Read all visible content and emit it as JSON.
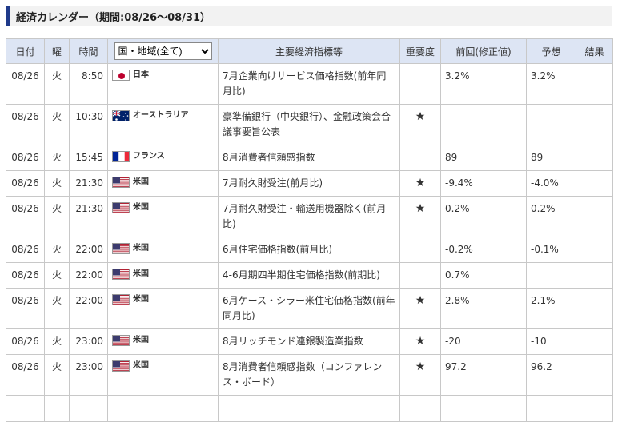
{
  "title": "経済カレンダー（期間:08/26〜08/31）",
  "headers": {
    "date": "日付",
    "weekday": "曜",
    "time": "時間",
    "region_select": "国・地域(全て)",
    "indicator": "主要経済指標等",
    "importance": "重要度",
    "previous": "前回(修正値)",
    "forecast": "予想",
    "result": "結果"
  },
  "rows": [
    {
      "date": "08/26",
      "weekday": "火",
      "time": "8:50",
      "flag": "jp-flag-icon",
      "country": "日本",
      "indicator": "7月企業向けサービス価格指数(前年同月比)",
      "importance": "",
      "previous": "3.2%",
      "forecast": "3.2%",
      "result": ""
    },
    {
      "date": "08/26",
      "weekday": "火",
      "time": "10:30",
      "flag": "au-flag-icon",
      "country": "オーストラリア",
      "indicator": "豪準備銀行（中央銀行）、金融政策会合議事要旨公表",
      "importance": "★",
      "previous": "",
      "forecast": "",
      "result": ""
    },
    {
      "date": "08/26",
      "weekday": "火",
      "time": "15:45",
      "flag": "fr-flag-icon",
      "country": "フランス",
      "indicator": "8月消費者信頼感指数",
      "importance": "",
      "previous": "89",
      "forecast": "89",
      "result": ""
    },
    {
      "date": "08/26",
      "weekday": "火",
      "time": "21:30",
      "flag": "us-flag-icon",
      "country": "米国",
      "indicator": "7月耐久財受注(前月比)",
      "importance": "★",
      "previous": "-9.4%",
      "forecast": "-4.0%",
      "result": ""
    },
    {
      "date": "08/26",
      "weekday": "火",
      "time": "21:30",
      "flag": "us-flag-icon",
      "country": "米国",
      "indicator": "7月耐久財受注・輸送用機器除く(前月比)",
      "importance": "★",
      "previous": "0.2%",
      "forecast": "0.2%",
      "result": ""
    },
    {
      "date": "08/26",
      "weekday": "火",
      "time": "22:00",
      "flag": "us-flag-icon",
      "country": "米国",
      "indicator": "6月住宅価格指数(前月比)",
      "importance": "",
      "previous": "-0.2%",
      "forecast": "-0.1%",
      "result": ""
    },
    {
      "date": "08/26",
      "weekday": "火",
      "time": "22:00",
      "flag": "us-flag-icon",
      "country": "米国",
      "indicator": "4-6月期四半期住宅価格指数(前期比)",
      "importance": "",
      "previous": "0.7%",
      "forecast": "",
      "result": ""
    },
    {
      "date": "08/26",
      "weekday": "火",
      "time": "22:00",
      "flag": "us-flag-icon",
      "country": "米国",
      "indicator": "6月ケース・シラー米住宅価格指数(前年同月比)",
      "importance": "★",
      "previous": "2.8%",
      "forecast": "2.1%",
      "result": ""
    },
    {
      "date": "08/26",
      "weekday": "火",
      "time": "23:00",
      "flag": "us-flag-icon",
      "country": "米国",
      "indicator": "8月リッチモンド連銀製造業指数",
      "importance": "★",
      "previous": "-20",
      "forecast": "-10",
      "result": ""
    },
    {
      "date": "08/26",
      "weekday": "火",
      "time": "23:00",
      "flag": "us-flag-icon",
      "country": "米国",
      "indicator": "8月消費者信頼感指数（コンファレンス・ボード）",
      "importance": "★",
      "previous": "97.2",
      "forecast": "96.2",
      "result": ""
    },
    {
      "date": "",
      "weekday": "",
      "time": "",
      "flag": "",
      "country": "",
      "indicator": "",
      "importance": "",
      "previous": "",
      "forecast": "",
      "result": ""
    }
  ]
}
